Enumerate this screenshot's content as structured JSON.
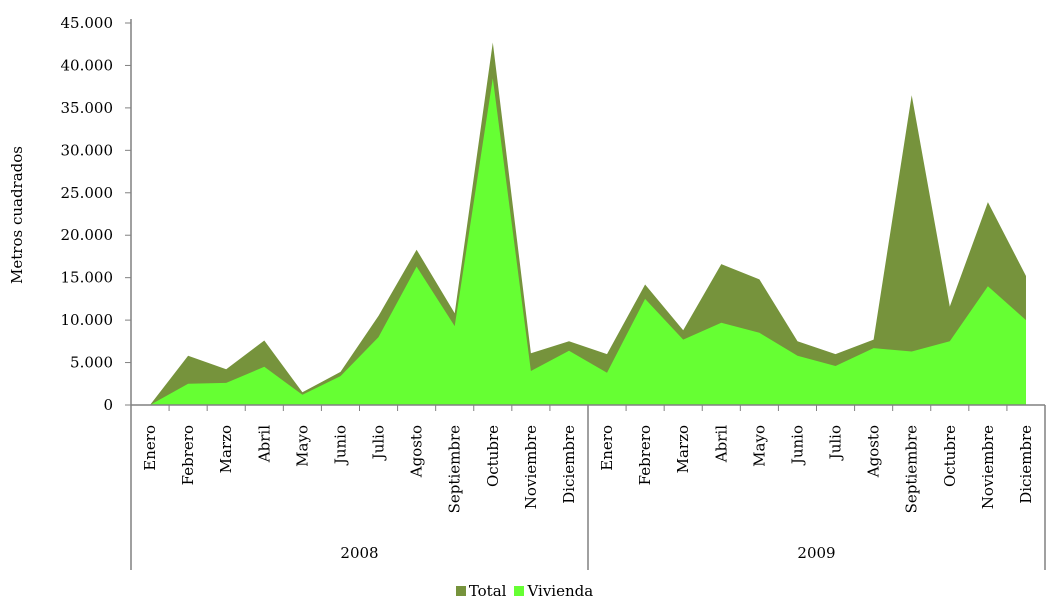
{
  "chart_data": {
    "type": "area",
    "ylabel": "Metros cuadrados",
    "xlabel": "",
    "ylim": [
      0,
      45000
    ],
    "yticks": [
      0,
      5000,
      10000,
      15000,
      20000,
      25000,
      30000,
      35000,
      40000,
      45000
    ],
    "ytick_labels": [
      "0",
      "5.000",
      "10.000",
      "15.000",
      "20.000",
      "25.000",
      "30.000",
      "35.000",
      "40.000",
      "45.000"
    ],
    "categories": [
      "Enero",
      "Febrero",
      "Marzo",
      "Abril",
      "Mayo",
      "Junio",
      "Julio",
      "Agosto",
      "Septiembre",
      "Octubre",
      "Noviembre",
      "Diciembre",
      "Enero",
      "Febrero",
      "Marzo",
      "Abril",
      "Mayo",
      "Junio",
      "Julio",
      "Agosto",
      "Septiembre",
      "Octubre",
      "Noviembre",
      "Diciembre"
    ],
    "groups": [
      {
        "label": "2008",
        "count": 12
      },
      {
        "label": "2009",
        "count": 12
      }
    ],
    "series": [
      {
        "name": "Total",
        "color": "#76933c",
        "values": [
          0,
          5800,
          4200,
          7600,
          1500,
          3900,
          10500,
          18300,
          10800,
          42700,
          6100,
          7500,
          6000,
          14200,
          8800,
          16600,
          14800,
          7500,
          6000,
          7700,
          36500,
          11600,
          23900,
          15200
        ]
      },
      {
        "name": "Vivienda",
        "color": "#66ff33",
        "values": [
          0,
          2500,
          2600,
          4500,
          1200,
          3400,
          8000,
          16300,
          9300,
          38500,
          4000,
          6400,
          3800,
          12500,
          7700,
          9700,
          8500,
          5800,
          4600,
          6700,
          6300,
          7500,
          14000,
          10000
        ]
      }
    ],
    "legend_position": "bottom",
    "grid": false
  }
}
